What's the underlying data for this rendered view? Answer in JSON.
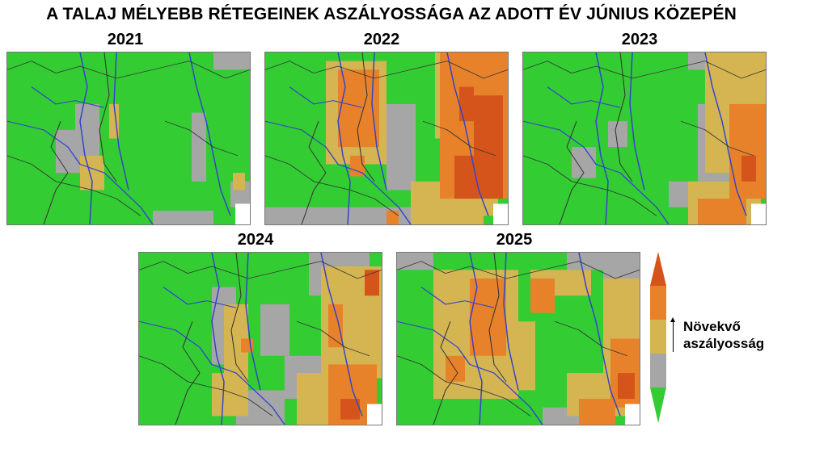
{
  "title": "A TALAJ MÉLYEBB RÉTEGEINEK ASZÁLYOSSÁGA AZ ADOTT ÉV JÚNIUS KÖZEPÉN",
  "maps": [
    {
      "year": "2021"
    },
    {
      "year": "2022"
    },
    {
      "year": "2023"
    },
    {
      "year": "2024"
    },
    {
      "year": "2025"
    }
  ],
  "legend": {
    "label_line1": "Növekvő",
    "label_line2": "aszályosság",
    "direction": "up = increasing drought",
    "classes": [
      {
        "level": 1,
        "color": "#33cc33"
      },
      {
        "level": 2,
        "color": "#a6a6a6"
      },
      {
        "level": 3,
        "color": "#d4b552"
      },
      {
        "level": 4,
        "color": "#e8822a"
      },
      {
        "level": 5,
        "color": "#d4541c"
      }
    ]
  },
  "colors": {
    "river": "#3344cc",
    "border": "#333333",
    "background": "#33cc33"
  }
}
